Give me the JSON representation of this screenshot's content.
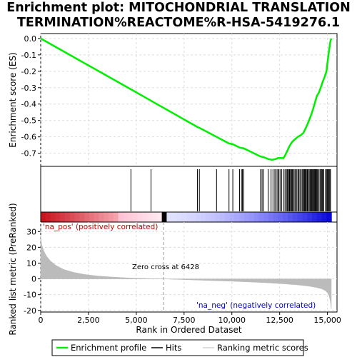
{
  "title_line1": "Enrichment plot: MITOCHONDRIAL TRANSLATION",
  "title_line2": "TERMINATION%REACTOME%R-HSA-5419276.1",
  "chart_data": {
    "type": "line",
    "es_panel": {
      "ylabel": "Enrichment score (ES)",
      "ylim": [
        -0.78,
        0.03
      ],
      "yticks": [
        0.0,
        -0.1,
        -0.2,
        -0.3,
        -0.4,
        -0.5,
        -0.6,
        -0.7
      ],
      "ytick_labels": [
        "0.0",
        "-0.1",
        "-0.2",
        "-0.3",
        "-0.4",
        "-0.5",
        "-0.6",
        "-0.7"
      ],
      "series": [
        {
          "name": "Enrichment profile",
          "color": "#00ee00",
          "x": [
            0,
            4720,
            5770,
            8200,
            8300,
            9200,
            9850,
            10050,
            10400,
            10500,
            10620,
            11500,
            11650,
            11900,
            12100,
            12300,
            12400,
            12500,
            12700,
            12800,
            12900,
            13000,
            13100,
            13200,
            13300,
            13450,
            13600,
            13750,
            13850,
            13950,
            14050,
            14150,
            14250,
            14350,
            14450,
            14550,
            14650,
            14750,
            14850,
            14950,
            15000,
            15050,
            15100,
            15150,
            15200
          ],
          "y": [
            0.0,
            -0.31,
            -0.38,
            -0.54,
            -0.545,
            -0.6,
            -0.64,
            -0.645,
            -0.665,
            -0.668,
            -0.67,
            -0.72,
            -0.723,
            -0.735,
            -0.74,
            -0.735,
            -0.73,
            -0.728,
            -0.73,
            -0.71,
            -0.685,
            -0.66,
            -0.64,
            -0.625,
            -0.615,
            -0.6,
            -0.59,
            -0.575,
            -0.55,
            -0.525,
            -0.495,
            -0.465,
            -0.43,
            -0.39,
            -0.35,
            -0.33,
            -0.3,
            -0.265,
            -0.235,
            -0.2,
            -0.15,
            -0.1,
            -0.06,
            -0.02,
            0.0
          ]
        }
      ]
    },
    "hits": {
      "name": "Hits",
      "positions": [
        4720,
        5770,
        8200,
        8300,
        9200,
        9850,
        10050,
        10400,
        10500,
        10550,
        10620,
        11500,
        11580,
        11650,
        11900,
        12050,
        12150,
        12250,
        12320,
        12400,
        12450,
        12520,
        12600,
        12700,
        12780,
        12850,
        12900,
        12950,
        13000,
        13030,
        13080,
        13120,
        13160,
        13200,
        13260,
        13320,
        13380,
        13450,
        13500,
        13560,
        13620,
        13680,
        13740,
        13780,
        13820,
        13860,
        13900,
        13950,
        14000,
        14050,
        14100,
        14150,
        14180,
        14220,
        14260,
        14300,
        14340,
        14380,
        14420,
        14460,
        14500,
        14560,
        14620,
        14680,
        14720,
        14760,
        14800,
        14900,
        14950,
        15000,
        15040,
        15080,
        15120,
        15160
      ]
    },
    "heatmap_bar": {
      "label_pos": "'na_pos' (positively correlated)",
      "label_neg": "'na_neg' (negatively correlated)",
      "color_pos": "#cc0000",
      "color_neg": "#0000cc"
    },
    "metric_panel": {
      "ylabel": "Ranked list metric (PreRanked)",
      "xlabel": "Rank in Ordered Dataset",
      "ylim": [
        -21,
        36
      ],
      "yticks": [
        30,
        20,
        10,
        0,
        -10,
        -20
      ],
      "ytick_labels": [
        "30",
        "20",
        "10",
        "0",
        "-10",
        "-20"
      ],
      "xlim": [
        0,
        15500
      ],
      "xticks": [
        0,
        2500,
        5000,
        7500,
        10000,
        12500,
        15000
      ],
      "xtick_labels": [
        "0",
        "2,500",
        "5,000",
        "7,500",
        "10,000",
        "12,500",
        "15,000"
      ],
      "zero_cross_label": "Zero cross at 6428",
      "zero_cross": 6428,
      "series": [
        {
          "name": "Ranking metric scores",
          "color": "#bbbbbb",
          "x": [
            0,
            50,
            150,
            300,
            500,
            800,
            1200,
            1700,
            2300,
            3000,
            3800,
            4600,
            5400,
            6000,
            6428,
            7000,
            8000,
            9000,
            10000,
            11000,
            12000,
            12800,
            13500,
            14000,
            14400,
            14700,
            14900,
            15000,
            15080,
            15150,
            15200
          ],
          "y": [
            27,
            22,
            18,
            14.5,
            11.5,
            8.5,
            6,
            4.2,
            2.8,
            1.8,
            1.1,
            0.6,
            0.3,
            0.1,
            0,
            -0.3,
            -0.7,
            -1.1,
            -1.5,
            -2,
            -2.6,
            -3.2,
            -3.9,
            -4.6,
            -5.4,
            -6.3,
            -7.5,
            -8.8,
            -10.5,
            -14,
            -19
          ]
        }
      ]
    },
    "legend": [
      {
        "label": "Enrichment profile",
        "color": "#00ee00"
      },
      {
        "label": "Hits",
        "color": "#000000"
      },
      {
        "label": "Ranking metric scores",
        "color": "#bbbbbb"
      }
    ]
  }
}
